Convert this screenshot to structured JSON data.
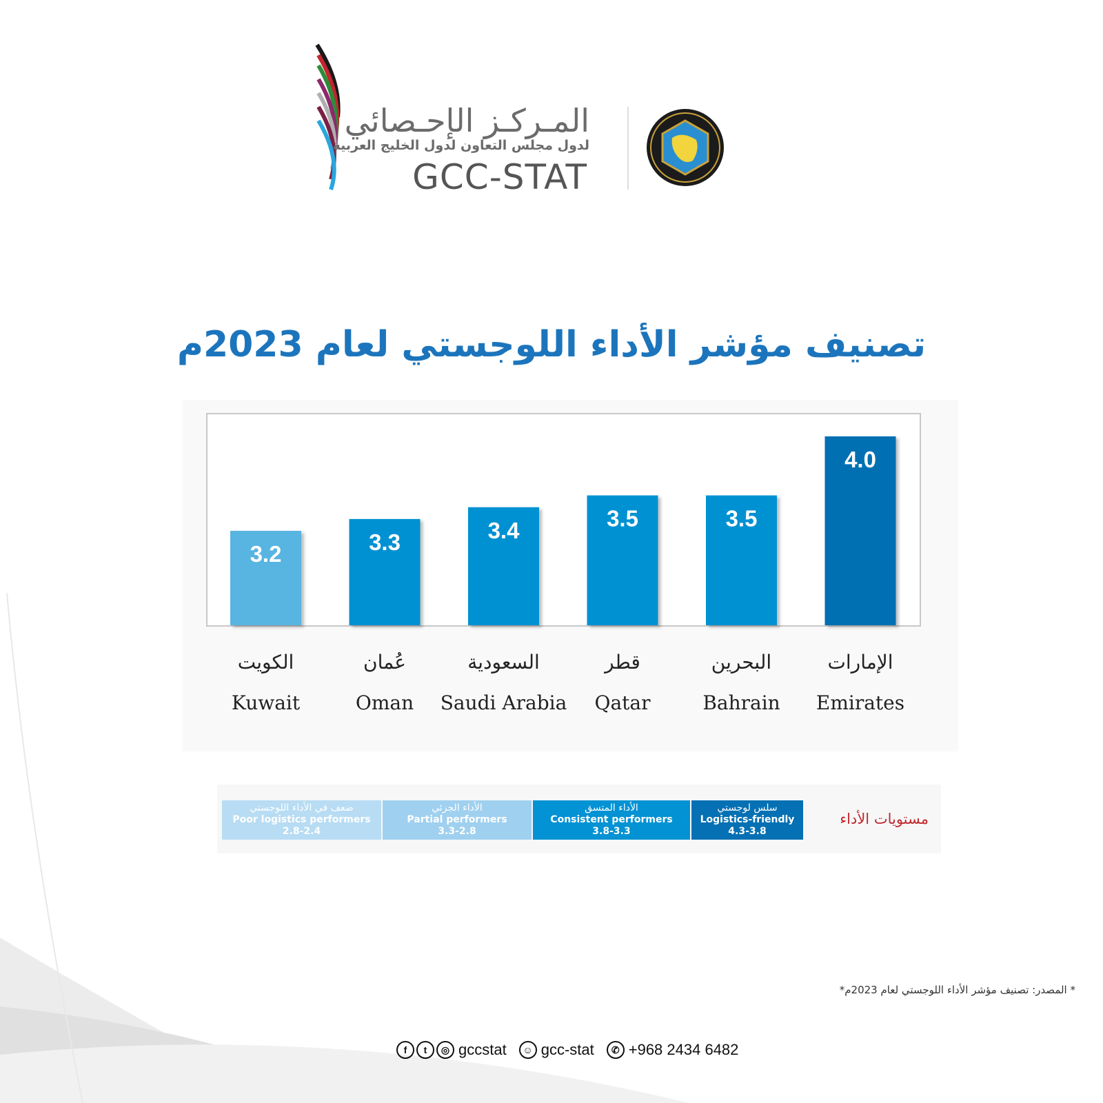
{
  "header": {
    "logo_ar_title": "المـركـز الإحـصائي",
    "logo_ar_subtitle": "لدول مجلس التعاون لدول الخليج العربية",
    "logo_en": "GCC-STAT"
  },
  "title": "تصنيف مؤشر الأداء اللوجستي  لعام 2023م",
  "chart_data": {
    "type": "bar",
    "categories": [
      "Kuwait",
      "Oman",
      "Saudi Arabia",
      "Qatar",
      "Bahrain",
      "Emirates"
    ],
    "categories_ar": [
      "الكويت",
      "عُمان",
      "السعودية",
      "قطر",
      "البحرين",
      "الإمارات"
    ],
    "values": [
      3.2,
      3.3,
      3.4,
      3.5,
      3.5,
      4.0
    ],
    "value_labels": [
      "3.2",
      "3.3",
      "3.4",
      "3.5",
      "3.5",
      "4.0"
    ],
    "bar_colors": [
      "#58b4e1",
      "#0391d2",
      "#0391d2",
      "#0391d2",
      "#0391d2",
      "#0570b3"
    ],
    "grid": false
  },
  "legend": {
    "title": "مستويات الأداء",
    "levels": [
      {
        "ar": "ضعف في الأداء اللوجستي",
        "en": "Poor logistics performers",
        "range": "2.8-2.4",
        "color": "#b7dcf3"
      },
      {
        "ar": "الأداء الجزئي",
        "en": "Partial performers",
        "range": "3.3-2.8",
        "color": "#9fd0ef"
      },
      {
        "ar": "الأداء المتسق",
        "en": "Consistent performers",
        "range": "3.8-3.3",
        "color": "#0392d3"
      },
      {
        "ar": "سلس لوجستي",
        "en": "Logistics-friendly",
        "range": "4.3-3.8",
        "color": "#0570b3"
      }
    ]
  },
  "footer": {
    "source": "* المصدر: تصنيف مؤشر الأداء اللوجستي لعام 2023م*",
    "handle": "gccstat",
    "snapchat": "gcc-stat",
    "whatsapp": "+968 2434 6482"
  }
}
